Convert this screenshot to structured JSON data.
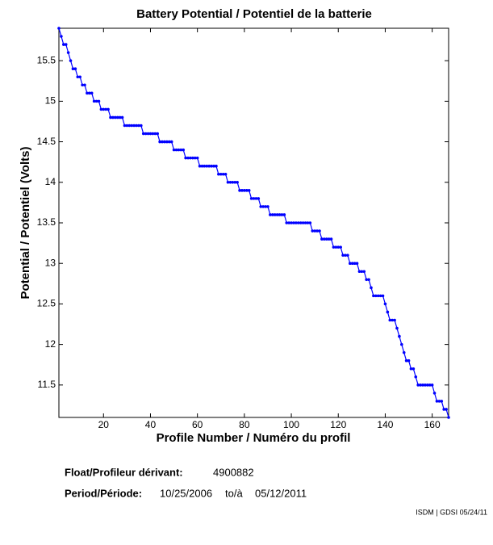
{
  "chart_data": {
    "type": "line",
    "title": "Battery Potential / Potentiel de la batterie",
    "x_label": "Profile Number / Numéro du profil",
    "y_label": "Potential / Potentiel (Volts)",
    "x": [
      1,
      2,
      3,
      4,
      5,
      6,
      7,
      8,
      9,
      10,
      11,
      12,
      13,
      14,
      15,
      16,
      17,
      18,
      19,
      20,
      21,
      22,
      23,
      24,
      25,
      26,
      27,
      28,
      29,
      30,
      31,
      32,
      33,
      34,
      35,
      36,
      37,
      38,
      39,
      40,
      41,
      42,
      43,
      44,
      45,
      46,
      47,
      48,
      49,
      50,
      51,
      52,
      53,
      54,
      55,
      56,
      57,
      58,
      59,
      60,
      61,
      62,
      63,
      64,
      65,
      66,
      67,
      68,
      69,
      70,
      71,
      72,
      73,
      74,
      75,
      76,
      77,
      78,
      79,
      80,
      81,
      82,
      83,
      84,
      85,
      86,
      87,
      88,
      89,
      90,
      91,
      92,
      93,
      94,
      95,
      96,
      97,
      98,
      99,
      100,
      101,
      102,
      103,
      104,
      105,
      106,
      107,
      108,
      109,
      110,
      111,
      112,
      113,
      114,
      115,
      116,
      117,
      118,
      119,
      120,
      121,
      122,
      123,
      124,
      125,
      126,
      127,
      128,
      129,
      130,
      131,
      132,
      133,
      134,
      135,
      136,
      137,
      138,
      139,
      140,
      141,
      142,
      143,
      144,
      145,
      146,
      147,
      148,
      149,
      150,
      151,
      152,
      153,
      154,
      155,
      156,
      157,
      158,
      159,
      160,
      161,
      162,
      163,
      164,
      165,
      166,
      167
    ],
    "series": [
      {
        "name": "Battery Potential",
        "color": "#0000ff",
        "values": [
          15.9,
          15.8,
          15.7,
          15.7,
          15.6,
          15.5,
          15.4,
          15.4,
          15.3,
          15.3,
          15.2,
          15.2,
          15.1,
          15.1,
          15.1,
          15.0,
          15.0,
          15.0,
          14.9,
          14.9,
          14.9,
          14.9,
          14.8,
          14.8,
          14.8,
          14.8,
          14.8,
          14.8,
          14.7,
          14.7,
          14.7,
          14.7,
          14.7,
          14.7,
          14.7,
          14.7,
          14.6,
          14.6,
          14.6,
          14.6,
          14.6,
          14.6,
          14.6,
          14.5,
          14.5,
          14.5,
          14.5,
          14.5,
          14.5,
          14.4,
          14.4,
          14.4,
          14.4,
          14.4,
          14.3,
          14.3,
          14.3,
          14.3,
          14.3,
          14.3,
          14.2,
          14.2,
          14.2,
          14.2,
          14.2,
          14.2,
          14.2,
          14.2,
          14.1,
          14.1,
          14.1,
          14.1,
          14.0,
          14.0,
          14.0,
          14.0,
          14.0,
          13.9,
          13.9,
          13.9,
          13.9,
          13.9,
          13.8,
          13.8,
          13.8,
          13.8,
          13.7,
          13.7,
          13.7,
          13.7,
          13.6,
          13.6,
          13.6,
          13.6,
          13.6,
          13.6,
          13.6,
          13.5,
          13.5,
          13.5,
          13.5,
          13.5,
          13.5,
          13.5,
          13.5,
          13.5,
          13.5,
          13.5,
          13.4,
          13.4,
          13.4,
          13.4,
          13.3,
          13.3,
          13.3,
          13.3,
          13.3,
          13.2,
          13.2,
          13.2,
          13.2,
          13.1,
          13.1,
          13.1,
          13.0,
          13.0,
          13.0,
          13.0,
          12.9,
          12.9,
          12.9,
          12.8,
          12.8,
          12.7,
          12.6,
          12.6,
          12.6,
          12.6,
          12.6,
          12.5,
          12.4,
          12.3,
          12.3,
          12.3,
          12.2,
          12.1,
          12.0,
          11.9,
          11.8,
          11.8,
          11.7,
          11.7,
          11.6,
          11.5,
          11.5,
          11.5,
          11.5,
          11.5,
          11.5,
          11.5,
          11.4,
          11.3,
          11.3,
          11.3,
          11.2,
          11.2,
          11.1
        ]
      }
    ],
    "xlim": [
      1,
      167
    ],
    "ylim": [
      11.1,
      15.9
    ],
    "xticks": [
      20,
      40,
      60,
      80,
      100,
      120,
      140,
      160
    ],
    "yticks": [
      11.5,
      12,
      12.5,
      13,
      13.5,
      14,
      14.5,
      15,
      15.5
    ],
    "grid": false
  },
  "info": {
    "float_label": "Float/Profileur dérivant:",
    "float_id": "4900882",
    "period_label": "Period/Période:",
    "start": "10/25/2006",
    "to": "to/à",
    "end": "05/12/2011",
    "credit": "ISDM | GDSI 05/24/11"
  }
}
